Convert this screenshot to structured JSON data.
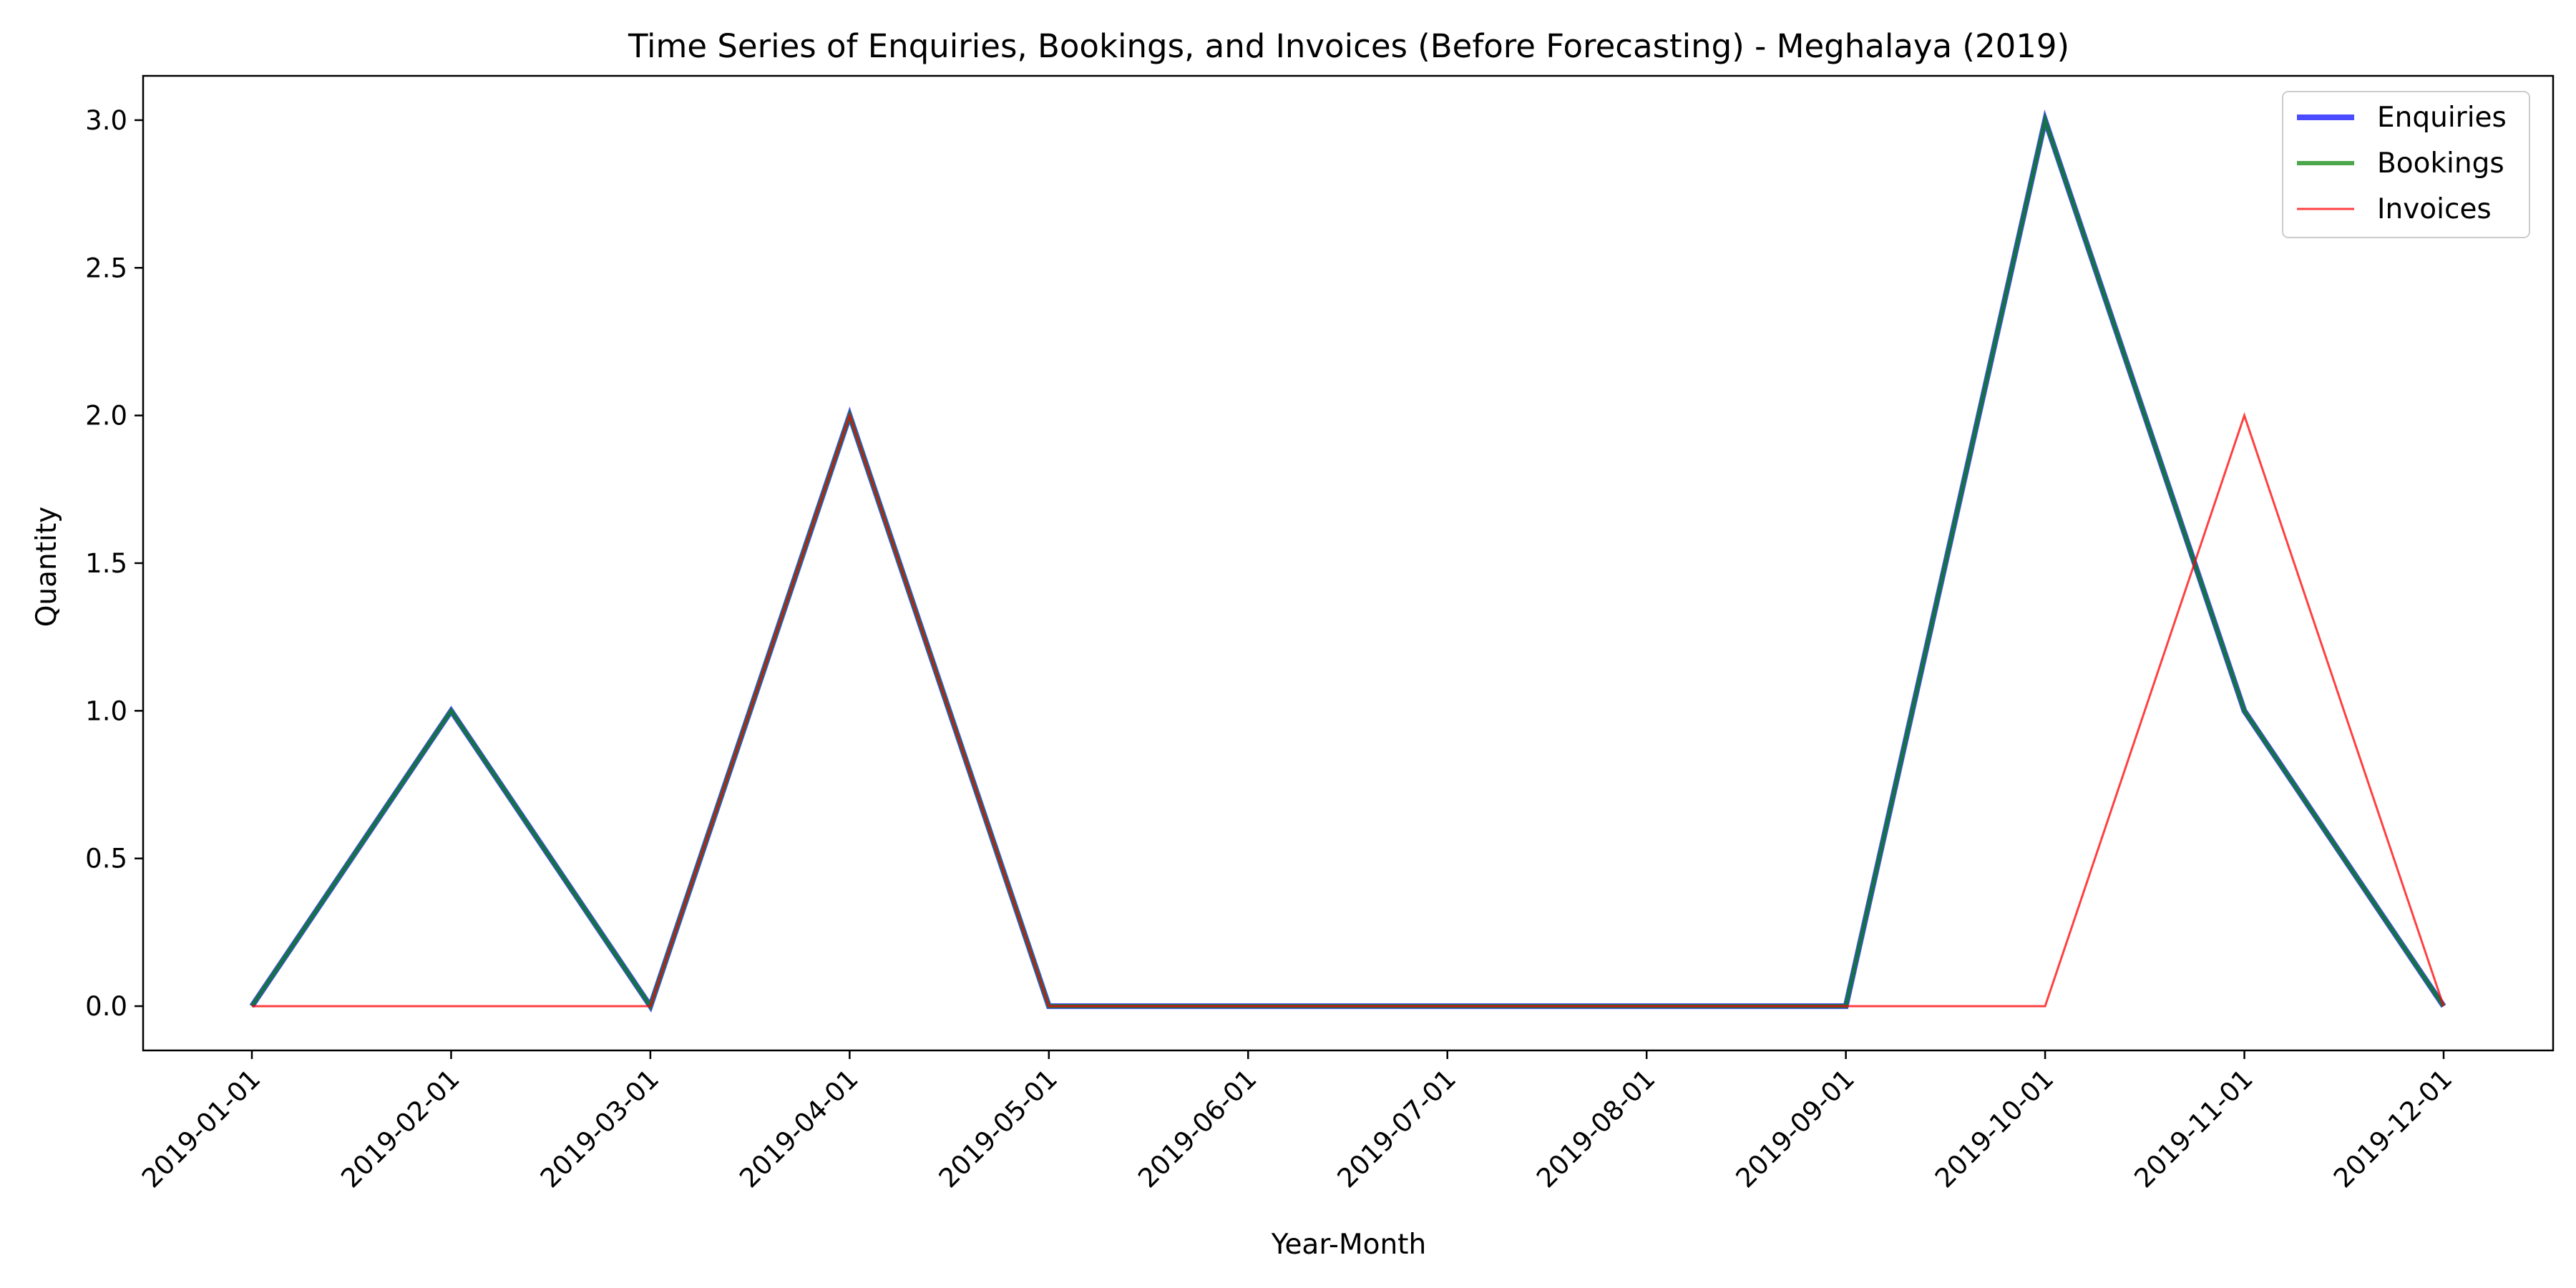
{
  "chart_data": {
    "type": "line",
    "title": "Time Series of Enquiries, Bookings, and Invoices (Before Forecasting) - Meghalaya (2019)",
    "xlabel": "Year-Month",
    "ylabel": "Quantity",
    "x": [
      "2019-01-01",
      "2019-02-01",
      "2019-03-01",
      "2019-04-01",
      "2019-05-01",
      "2019-06-01",
      "2019-07-01",
      "2019-08-01",
      "2019-09-01",
      "2019-10-01",
      "2019-11-01",
      "2019-12-01"
    ],
    "ylim": [
      -0.15,
      3.15
    ],
    "yticks": [
      0.0,
      0.5,
      1.0,
      1.5,
      2.0,
      2.5,
      3.0
    ],
    "ytick_labels": [
      "0.0",
      "0.5",
      "1.0",
      "1.5",
      "2.0",
      "2.5",
      "3.0"
    ],
    "grid": false,
    "legend_position": "top-right",
    "series": [
      {
        "name": "Enquiries",
        "color": "#0000ff",
        "opacity": 0.7,
        "values": [
          0,
          1,
          0,
          2,
          0,
          0,
          0,
          0,
          0,
          3,
          1,
          0
        ]
      },
      {
        "name": "Bookings",
        "color": "#008000",
        "opacity": 0.7,
        "values": [
          0,
          1,
          0,
          2,
          0,
          0,
          0,
          0,
          0,
          3,
          1,
          0
        ]
      },
      {
        "name": "Invoices",
        "color": "#ff0000",
        "opacity": 0.75,
        "values": [
          0,
          0,
          0,
          2,
          0,
          0,
          0,
          0,
          0,
          0,
          2,
          0
        ]
      }
    ]
  }
}
